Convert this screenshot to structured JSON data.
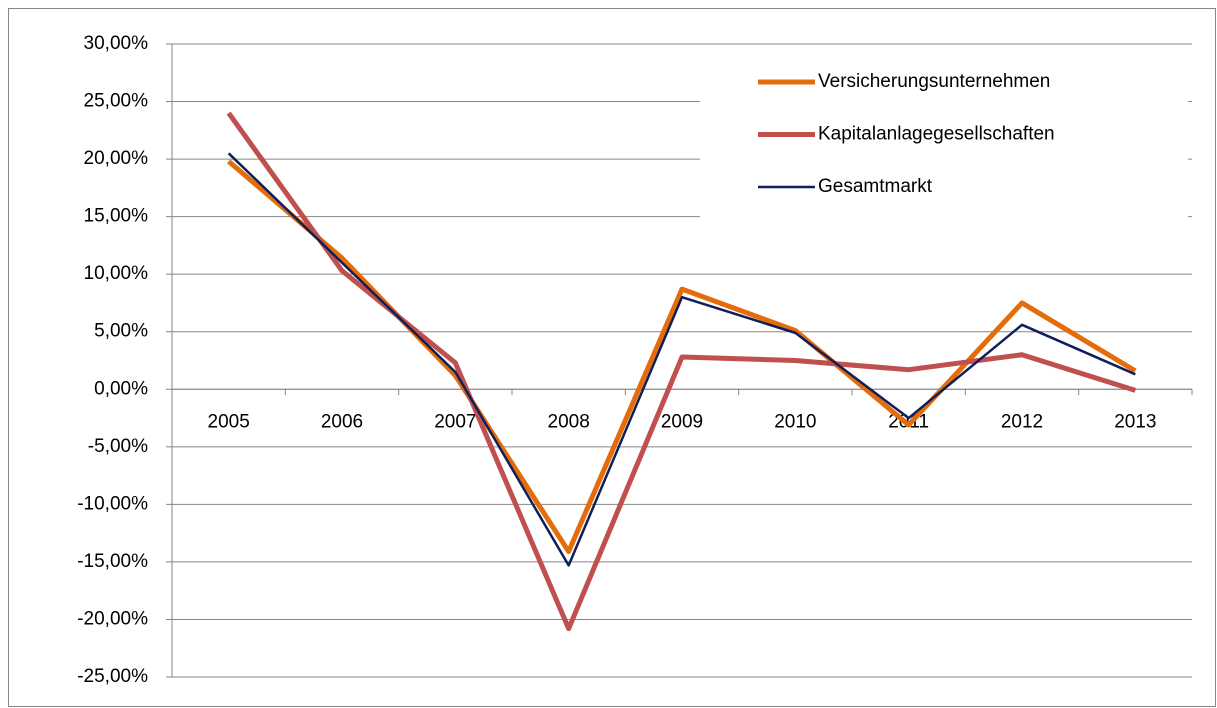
{
  "chart_data": {
    "type": "line",
    "categories": [
      "2005",
      "2006",
      "2007",
      "2008",
      "2009",
      "2010",
      "2011",
      "2012",
      "2013"
    ],
    "series": [
      {
        "name": "Versicherungsunternehmen",
        "color": "#e46c0a",
        "values": [
          19.8,
          11.4,
          1.2,
          -14.1,
          8.7,
          5.1,
          -3.1,
          7.5,
          1.6
        ]
      },
      {
        "name": "Kapitalanlagegesellschaften",
        "color": "#c0504d",
        "values": [
          24.0,
          10.3,
          2.3,
          -20.8,
          2.8,
          2.5,
          1.7,
          3.0,
          -0.1
        ]
      },
      {
        "name": "Gesamtmarkt",
        "color": "#0f1f5a",
        "values": [
          20.5,
          11.0,
          1.5,
          -15.3,
          8.0,
          4.9,
          -2.5,
          5.6,
          1.3
        ]
      }
    ],
    "ylim": [
      -25,
      30
    ],
    "yticks": [
      {
        "value": -25,
        "label": "-25,00%"
      },
      {
        "value": -20,
        "label": "-20,00%"
      },
      {
        "value": -15,
        "label": "-15,00%"
      },
      {
        "value": -10,
        "label": "-10,00%"
      },
      {
        "value": -5,
        "label": "-5,00%"
      },
      {
        "value": 0,
        "label": "0,00%"
      },
      {
        "value": 5,
        "label": "5,00%"
      },
      {
        "value": 10,
        "label": "10,00%"
      },
      {
        "value": 15,
        "label": "15,00%"
      },
      {
        "value": 20,
        "label": "20,00%"
      },
      {
        "value": 25,
        "label": "25,00%"
      },
      {
        "value": 30,
        "label": "30,00%"
      }
    ],
    "grid": true,
    "legend": "top-right"
  }
}
